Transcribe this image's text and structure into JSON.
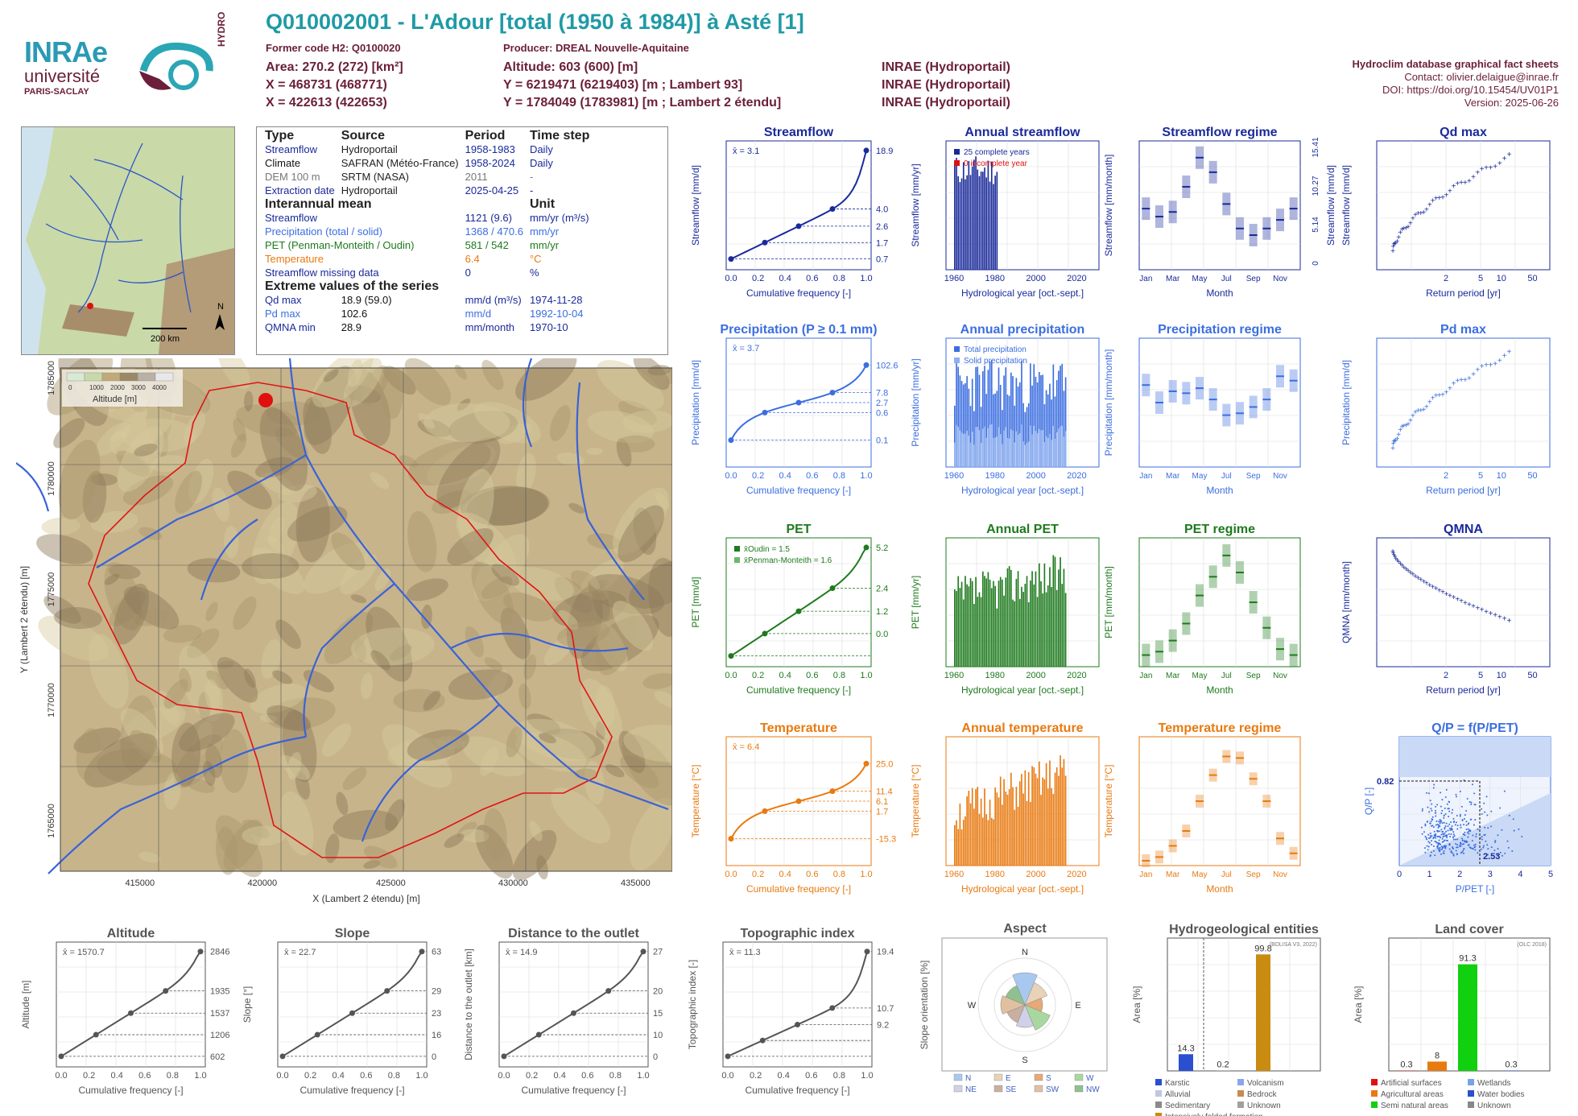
{
  "header": {
    "title": "Q010002001 - L'Adour [total (1950 à 1984)] à Asté [1]",
    "former_code": "Former code H2: Q0100020",
    "producer": "Producer: DREAL Nouvelle-Aquitaine",
    "area": "Area: 270.2 (272) [km²]",
    "altitude": "Altitude: 603 (600) [m]",
    "x93": "X = 468731 (468771)",
    "y93": "Y = 6219471 (6219403) [m ; Lambert 93]",
    "x2e": "X = 422613 (422653)",
    "y2e": "Y = 1784049 (1783981) [m ; Lambert 2 étendu]",
    "src1": "INRAE (Hydroportail)",
    "src2": "INRAE (Hydroportail)",
    "src3": "INRAE (Hydroportail)",
    "sheet_title": "Hydroclim database graphical fact sheets",
    "contact": "Contact: olivier.delaigue@inrae.fr",
    "doi": "DOI: https://doi.org/10.15454/UV01P1",
    "version": "Version: 2025-06-26"
  },
  "logos": {
    "inrae": "INRAe",
    "univ": "université",
    "univ2": "PARIS-SACLAY",
    "hydro": "HYDRO"
  },
  "info_table": {
    "head": [
      "Type",
      "Source",
      "Period",
      "Time step"
    ],
    "rows": [
      {
        "type": "Streamflow",
        "source": "Hydroportail",
        "period": "1958-1983",
        "step": "Daily",
        "color": "#1a2a9a"
      },
      {
        "type": "Climate",
        "source": "SAFRAN (Météo-France)",
        "period": "1958-2024",
        "step": "Daily",
        "color": "#111111"
      },
      {
        "type": "DEM 100 m",
        "source": "SRTM (NASA)",
        "period": "2011",
        "step": "-",
        "color": "#777777"
      },
      {
        "type": "Extraction date",
        "source": "Hydroportail",
        "period": "2025-04-25",
        "step": "-",
        "color": "#1a2a9a"
      }
    ],
    "interannual_title": "Interannual mean",
    "unit_title": "Unit",
    "means": [
      {
        "name": "Streamflow",
        "value": "1121 (9.6)",
        "unit": "mm/yr (m³/s)",
        "color": "#1a2a9a"
      },
      {
        "name": "Precipitation (total / solid)",
        "value": "1368 / 470.6",
        "unit": "mm/yr",
        "color": "#3b6ee0"
      },
      {
        "name": "PET (Penman-Monteith / Oudin)",
        "value": "581 / 542",
        "unit": "mm/yr",
        "color": "#1e7a1e"
      },
      {
        "name": "Temperature",
        "value": "6.4",
        "unit": "°C",
        "color": "#e87a10"
      },
      {
        "name": "Streamflow missing data",
        "value": "0",
        "unit": "%",
        "color": "#1a2a9a"
      }
    ],
    "extreme_title": "Extreme values of the series",
    "extremes": [
      {
        "name": "Qd max",
        "value": "18.9 (59.0)",
        "unit": "mm/d (m³/s)",
        "date": "1974-11-28",
        "color": "#1a2a9a"
      },
      {
        "name": "Pd max",
        "value": "102.6",
        "unit": "mm/d",
        "date": "1992-10-04",
        "color": "#3b6ee0"
      },
      {
        "name": "QMNA min",
        "value": "28.9",
        "unit": "mm/month",
        "date": "1970-10",
        "color": "#1a2a9a"
      }
    ]
  },
  "overview_map": {
    "scale": "200 km",
    "north": "N"
  },
  "dem_map": {
    "legend_title": "Altitude [m]",
    "legend_ticks": [
      "0",
      "1000",
      "2000",
      "3000",
      "4000"
    ],
    "xlabel": "X (Lambert 2 étendu) [m]",
    "ylabel": "Y (Lambert 2 étendu) [m]",
    "xticks": [
      "415000",
      "420000",
      "425000",
      "430000",
      "435000"
    ],
    "yticks": [
      "1785000",
      "1780000",
      "1775000",
      "1770000",
      "1765000"
    ]
  },
  "chart_data": [
    {
      "id": "streamflow_cdf",
      "type": "line",
      "title": "Streamflow",
      "xlabel": "Cumulative frequency [-]",
      "ylabel": "Streamflow [mm/d]",
      "mean_label": "x̄ = 3.1",
      "x": [
        0,
        0.25,
        0.5,
        0.75,
        1
      ],
      "y": [
        0.7,
        1.7,
        2.6,
        4.0,
        18.9
      ],
      "right_ticks": [
        "18.9",
        "4.0",
        "2.6",
        "1.7",
        "0.7"
      ],
      "color": "#1a2a9a",
      "log": true
    },
    {
      "id": "annual_streamflow",
      "type": "bar",
      "title": "Annual streamflow",
      "xlabel": "Hydrological year [oct.-sept.]",
      "ylabel": "Streamflow [mm/yr]",
      "legend": [
        "25 complete years",
        "0 incomplete year"
      ],
      "color": "#1a2a9a",
      "x_range": [
        1958,
        1983
      ],
      "ylim": [
        600,
        1400
      ],
      "years": [
        1958,
        1959,
        1960,
        1961,
        1962,
        1963,
        1964,
        1965,
        1966,
        1967,
        1968,
        1969,
        1970,
        1971,
        1972,
        1973,
        1974,
        1975,
        1976,
        1977,
        1978,
        1979,
        1980,
        1981,
        1982
      ],
      "values": [
        1100,
        1180,
        1250,
        1050,
        980,
        1300,
        1020,
        1230,
        1150,
        1080,
        1190,
        1210,
        1050,
        1280,
        1120,
        1000,
        1330,
        1060,
        940,
        1360,
        1200,
        1270,
        1100,
        1250,
        1170
      ]
    },
    {
      "id": "streamflow_regime",
      "type": "box",
      "title": "Streamflow regime",
      "xlabel": "Month",
      "ylabel": "Streamflow [mm/month]",
      "right_label": "Streamflow [mm/d]",
      "right_ticks": [
        "15.41",
        "10.27",
        "5.14",
        "0"
      ],
      "months": [
        "Jan",
        "Feb",
        "Mar",
        "Apr",
        "May",
        "Jun",
        "Jul",
        "Aug",
        "Sep",
        "Oct",
        "Nov",
        "Dec"
      ],
      "medians": [
        85,
        73,
        80,
        118,
        162,
        140,
        92,
        55,
        45,
        55,
        68,
        85
      ],
      "color": "#1a2a9a"
    },
    {
      "id": "qd_max",
      "type": "scatter",
      "title": "Qd max",
      "xlabel": "Return period [yr]",
      "ylabel": "Streamflow [mm/d]",
      "color": "#1a2a9a"
    },
    {
      "id": "precip_cdf",
      "type": "line",
      "title": "Precipitation (P ≥ 0.1 mm)",
      "xlabel": "Cumulative frequency [-]",
      "ylabel": "Precipitation [mm/d]",
      "mean_label": "x̄ = 3.7",
      "right_ticks": [
        "102.6",
        "7.8",
        "2.7",
        "0.6",
        "0.1"
      ],
      "color": "#3b6ee0"
    },
    {
      "id": "annual_precip",
      "type": "bar",
      "title": "Annual precipitation",
      "xlabel": "Hydrological year [oct.-sept.]",
      "ylabel": "Precipitation [mm/yr]",
      "legend": [
        "Total precipitation",
        "Solid precipitation"
      ],
      "color": "#3b6ee0"
    },
    {
      "id": "precip_regime",
      "type": "box",
      "title": "Precipitation regime",
      "xlabel": "Month",
      "ylabel": "Precipitation [mm/month]",
      "months": [
        "Jan",
        "Feb",
        "Mar",
        "Apr",
        "May",
        "Jun",
        "Jul",
        "Aug",
        "Sep",
        "Oct",
        "Nov",
        "Dec"
      ],
      "medians": [
        123,
        95,
        113,
        110,
        118,
        100,
        75,
        78,
        88,
        100,
        137,
        130
      ],
      "color": "#3b6ee0"
    },
    {
      "id": "pd_max",
      "type": "scatter",
      "title": "Pd max",
      "xlabel": "Return period [yr]",
      "ylabel": "Precipitation [mm/d]",
      "color": "#3b6ee0"
    },
    {
      "id": "pet_cdf",
      "type": "line",
      "title": "PET",
      "xlabel": "Cumulative frequency [-]",
      "ylabel": "PET [mm/d]",
      "legend": [
        "x̄Oudin = 1.5",
        "x̄Penman-Monteith = 1.6"
      ],
      "right_ticks": [
        "5.2",
        "2.4",
        "1.2",
        "0.0"
      ],
      "color": "#1e7a1e"
    },
    {
      "id": "annual_pet",
      "type": "bar",
      "title": "Annual PET",
      "xlabel": "Hydrological year [oct.-sept.]",
      "ylabel": "PET [mm/yr]",
      "color": "#1e7a1e"
    },
    {
      "id": "pet_regime",
      "type": "box",
      "title": "PET regime",
      "xlabel": "Month",
      "ylabel": "PET [mm/month]",
      "months": [
        "Jan",
        "Feb",
        "Mar",
        "Apr",
        "May",
        "Jun",
        "Jul",
        "Aug",
        "Sep",
        "Oct",
        "Nov",
        "Dec"
      ],
      "medians": [
        8,
        12,
        25,
        45,
        78,
        100,
        125,
        105,
        70,
        40,
        15,
        8
      ],
      "color": "#1e7a1e"
    },
    {
      "id": "qmna",
      "type": "scatter",
      "title": "QMNA",
      "xlabel": "Return period [yr]",
      "ylabel": "QMNA [mm/month]",
      "color": "#1a2a9a"
    },
    {
      "id": "temp_cdf",
      "type": "line",
      "title": "Temperature",
      "xlabel": "Cumulative frequency [-]",
      "ylabel": "Temperature [°C]",
      "mean_label": "x̄ = 6.4",
      "right_ticks": [
        "25.0",
        "11.4",
        "6.1",
        "1.7",
        "-15.3"
      ],
      "color": "#e87a10"
    },
    {
      "id": "annual_temp",
      "type": "bar",
      "title": "Annual temperature",
      "xlabel": "Hydrological year [oct.-sept.]",
      "ylabel": "Temperature [°C]",
      "color": "#e87a10"
    },
    {
      "id": "temp_regime",
      "type": "box",
      "title": "Temperature regime",
      "xlabel": "Month",
      "ylabel": "Temperature [°C]",
      "months": [
        "Jan",
        "Feb",
        "Mar",
        "Apr",
        "May",
        "Jun",
        "Jul",
        "Aug",
        "Sep",
        "Oct",
        "Nov",
        "Dec"
      ],
      "medians": [
        0,
        0.5,
        2,
        4,
        8,
        11.5,
        14,
        13.8,
        11,
        8,
        3,
        1
      ],
      "color": "#e87a10"
    },
    {
      "id": "qp_pet",
      "type": "scatter",
      "title": "Q/P = f(P/PET)",
      "xlabel": "P/PET [-]",
      "ylabel": "Q/P [-]",
      "labels": [
        "0.82",
        "2.53"
      ],
      "color": "#3b6ee0"
    },
    {
      "id": "altitude",
      "type": "line",
      "title": "Altitude",
      "xlabel": "Cumulative frequency [-]",
      "ylabel": "Altitude [m]",
      "mean_label": "x̄ = 1570.7",
      "right_ticks": [
        "2846",
        "1935",
        "1537",
        "1206",
        "602"
      ],
      "color": "#555555"
    },
    {
      "id": "slope",
      "type": "line",
      "title": "Slope",
      "xlabel": "Cumulative frequency [-]",
      "ylabel": "Slope [°]",
      "mean_label": "x̄ = 22.7",
      "right_ticks": [
        "63",
        "29",
        "23",
        "16",
        "0"
      ],
      "color": "#555555"
    },
    {
      "id": "distance",
      "type": "line",
      "title": "Distance to the outlet",
      "xlabel": "Cumulative frequency [-]",
      "ylabel": "Distance to the outlet [km]",
      "mean_label": "x̄ = 14.9",
      "right_ticks": [
        "27",
        "20",
        "15",
        "10",
        "0"
      ],
      "color": "#555555"
    },
    {
      "id": "topo_index",
      "type": "line",
      "title": "Topographic index",
      "xlabel": "Cumulative frequency [-]",
      "ylabel": "Topographic index [-]",
      "mean_label": "x̄ = 11.3",
      "right_ticks": [
        "19.4",
        "10.7",
        "9.2"
      ],
      "color": "#555555"
    },
    {
      "id": "aspect",
      "type": "pie",
      "title": "Aspect",
      "ylabel": "Slope orientation [%]",
      "directions": [
        "N",
        "E",
        "S",
        "W"
      ],
      "legend": [
        "N",
        "E",
        "S",
        "W",
        "NE",
        "SE",
        "SW",
        "NW"
      ]
    },
    {
      "id": "hydrogeo",
      "type": "bar",
      "title": "Hydrogeological entities",
      "xlabel": "",
      "ylabel": "Area [%]",
      "source": "(BDLISA V3, 2022)",
      "values": [
        14.3,
        0.2,
        99.8
      ],
      "legend": [
        "Karstic",
        "Volcanism",
        "Alluvial",
        "Bedrock",
        "Sedimentary",
        "Unknown",
        "Intensively folded formation"
      ]
    },
    {
      "id": "landcover",
      "type": "bar",
      "title": "Land cover",
      "xlabel": "",
      "ylabel": "Area [%]",
      "source": "(OLC 2018)",
      "values": [
        0.3,
        8,
        91.3,
        0.3
      ],
      "legend": [
        "Artificial surfaces",
        "Wetlands",
        "Agricultural areas",
        "Water bodies",
        "Semi natural areas",
        "Unknown"
      ]
    }
  ]
}
